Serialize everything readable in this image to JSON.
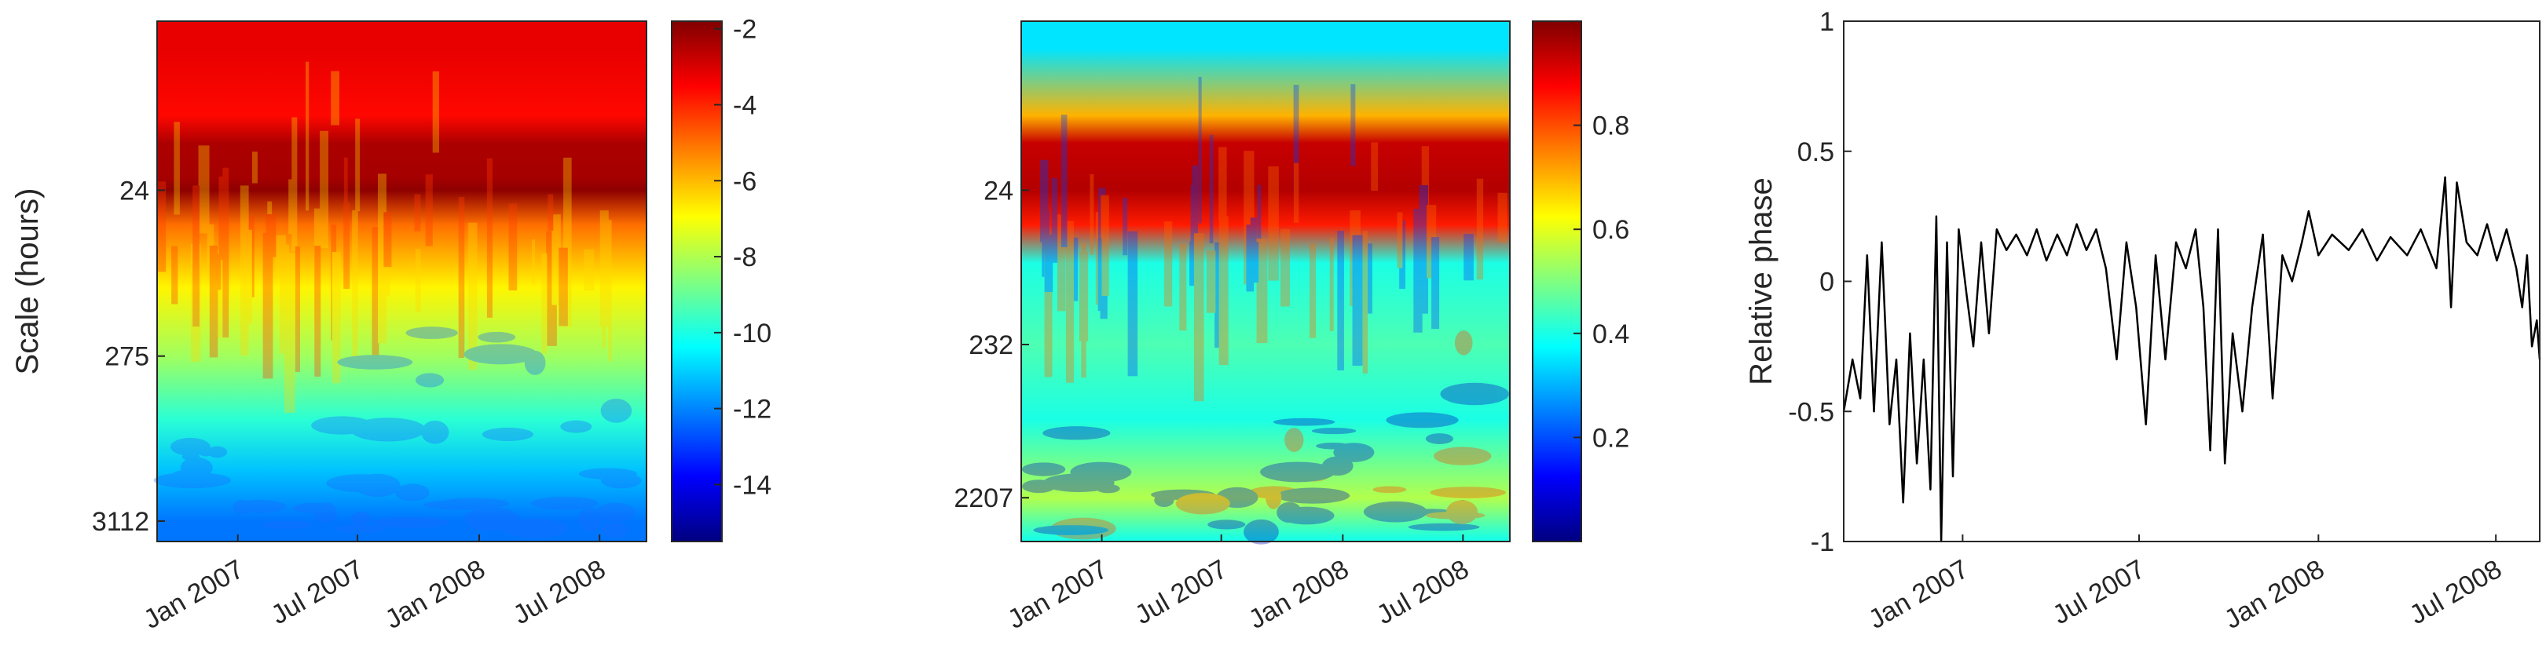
{
  "chart_data": [
    {
      "type": "heatmap",
      "panel": "power",
      "ylabel": "Scale (hours)",
      "y_scale": "log",
      "y_range_hours": [
        2,
        4200
      ],
      "yticks": [
        {
          "label": "24",
          "value": 24
        },
        {
          "label": "275",
          "value": 275
        },
        {
          "label": "3112",
          "value": 3112
        }
      ],
      "x_range": [
        "2006-09-01",
        "2008-09-10"
      ],
      "xticks": [
        {
          "label": "Jan 2007",
          "date": "2007-01-01"
        },
        {
          "label": "Jul 2007",
          "date": "2007-07-01"
        },
        {
          "label": "Jan 2008",
          "date": "2008-01-01"
        },
        {
          "label": "Jul 2008",
          "date": "2008-07-01"
        }
      ],
      "colormap": "jet",
      "colorbar": {
        "min": -15.5,
        "max": -1.8,
        "ticks": [
          -2,
          -4,
          -6,
          -8,
          -10,
          -12,
          -14
        ]
      },
      "profile_by_scale": [
        {
          "scale": 3,
          "value": -3.2
        },
        {
          "scale": 8,
          "value": -3.6
        },
        {
          "scale": 12,
          "value": -2.4
        },
        {
          "scale": 20,
          "value": -2.3
        },
        {
          "scale": 24,
          "value": -2.0
        },
        {
          "scale": 40,
          "value": -5.0
        },
        {
          "scale": 100,
          "value": -6.8
        },
        {
          "scale": 275,
          "value": -8.2
        },
        {
          "scale": 700,
          "value": -9.8
        },
        {
          "scale": 1500,
          "value": -11.2
        },
        {
          "scale": 3112,
          "value": -12.2
        }
      ]
    },
    {
      "type": "heatmap",
      "panel": "coherence",
      "y_scale": "log",
      "y_range_hours": [
        2,
        4200
      ],
      "yticks": [
        {
          "label": "24",
          "value": 24
        },
        {
          "label": "232",
          "value": 232
        },
        {
          "label": "2207",
          "value": 2207
        }
      ],
      "x_range": [
        "2006-09-01",
        "2008-09-10"
      ],
      "xticks": [
        {
          "label": "Jan 2007",
          "date": "2007-01-01"
        },
        {
          "label": "Jul 2007",
          "date": "2007-07-01"
        },
        {
          "label": "Jan 2008",
          "date": "2008-01-01"
        },
        {
          "label": "Jul 2008",
          "date": "2008-07-01"
        }
      ],
      "colormap": "jet",
      "colorbar": {
        "min": 0,
        "max": 1,
        "ticks": [
          0.8,
          0.6,
          0.4,
          0.2
        ]
      },
      "profile_by_scale": [
        {
          "scale": 3,
          "value": 0.35
        },
        {
          "scale": 8,
          "value": 0.7
        },
        {
          "scale": 12,
          "value": 0.93
        },
        {
          "scale": 24,
          "value": 0.95
        },
        {
          "scale": 40,
          "value": 0.85
        },
        {
          "scale": 70,
          "value": 0.4
        },
        {
          "scale": 232,
          "value": 0.45
        },
        {
          "scale": 700,
          "value": 0.4
        },
        {
          "scale": 2207,
          "value": 0.55
        },
        {
          "scale": 4000,
          "value": 0.4
        }
      ]
    },
    {
      "type": "line",
      "ylabel": "Relative phase",
      "ylim": [
        -1,
        1
      ],
      "yticks": [
        1,
        0.5,
        0,
        -0.5,
        -1
      ],
      "x_range": [
        "2006-09-01",
        "2008-08-15"
      ],
      "xticks": [
        {
          "label": "Jan 2007",
          "date": "2007-01-01"
        },
        {
          "label": "Jul 2007",
          "date": "2007-07-01"
        },
        {
          "label": "Jan 2008",
          "date": "2008-01-01"
        },
        {
          "label": "Jul 2008",
          "date": "2008-07-01"
        }
      ],
      "series": [
        {
          "color": "#000000",
          "points": [
            [
              "2006-09-01",
              -0.5
            ],
            [
              "2006-09-10",
              -0.3
            ],
            [
              "2006-09-18",
              -0.45
            ],
            [
              "2006-09-25",
              0.1
            ],
            [
              "2006-10-02",
              -0.5
            ],
            [
              "2006-10-10",
              0.15
            ],
            [
              "2006-10-18",
              -0.55
            ],
            [
              "2006-10-25",
              -0.3
            ],
            [
              "2006-11-01",
              -0.85
            ],
            [
              "2006-11-08",
              -0.2
            ],
            [
              "2006-11-15",
              -0.7
            ],
            [
              "2006-11-22",
              -0.3
            ],
            [
              "2006-11-29",
              -0.8
            ],
            [
              "2006-12-05",
              0.25
            ],
            [
              "2006-12-10",
              -1.0
            ],
            [
              "2006-12-16",
              0.15
            ],
            [
              "2006-12-22",
              -0.75
            ],
            [
              "2006-12-28",
              0.2
            ],
            [
              "2007-01-05",
              -0.05
            ],
            [
              "2007-01-12",
              -0.25
            ],
            [
              "2007-01-20",
              0.15
            ],
            [
              "2007-01-28",
              -0.2
            ],
            [
              "2007-02-05",
              0.2
            ],
            [
              "2007-02-15",
              0.12
            ],
            [
              "2007-02-25",
              0.18
            ],
            [
              "2007-03-08",
              0.1
            ],
            [
              "2007-03-18",
              0.2
            ],
            [
              "2007-03-28",
              0.08
            ],
            [
              "2007-04-08",
              0.18
            ],
            [
              "2007-04-18",
              0.1
            ],
            [
              "2007-04-28",
              0.22
            ],
            [
              "2007-05-08",
              0.12
            ],
            [
              "2007-05-18",
              0.2
            ],
            [
              "2007-05-28",
              0.05
            ],
            [
              "2007-06-08",
              -0.3
            ],
            [
              "2007-06-18",
              0.15
            ],
            [
              "2007-06-28",
              -0.1
            ],
            [
              "2007-07-08",
              -0.55
            ],
            [
              "2007-07-18",
              0.1
            ],
            [
              "2007-07-28",
              -0.3
            ],
            [
              "2007-08-08",
              0.15
            ],
            [
              "2007-08-18",
              0.05
            ],
            [
              "2007-08-28",
              0.2
            ],
            [
              "2007-09-05",
              -0.1
            ],
            [
              "2007-09-12",
              -0.65
            ],
            [
              "2007-09-20",
              0.2
            ],
            [
              "2007-09-27",
              -0.7
            ],
            [
              "2007-10-05",
              -0.2
            ],
            [
              "2007-10-15",
              -0.5
            ],
            [
              "2007-10-25",
              -0.1
            ],
            [
              "2007-11-05",
              0.18
            ],
            [
              "2007-11-15",
              -0.45
            ],
            [
              "2007-11-25",
              0.1
            ],
            [
              "2007-12-05",
              0.0
            ],
            [
              "2007-12-15",
              0.15
            ],
            [
              "2007-12-22",
              0.27
            ],
            [
              "2008-01-01",
              0.1
            ],
            [
              "2008-01-15",
              0.18
            ],
            [
              "2008-02-01",
              0.12
            ],
            [
              "2008-02-15",
              0.2
            ],
            [
              "2008-03-01",
              0.08
            ],
            [
              "2008-03-15",
              0.17
            ],
            [
              "2008-04-01",
              0.1
            ],
            [
              "2008-04-15",
              0.2
            ],
            [
              "2008-05-01",
              0.05
            ],
            [
              "2008-05-10",
              0.4
            ],
            [
              "2008-05-16",
              -0.1
            ],
            [
              "2008-05-22",
              0.38
            ],
            [
              "2008-06-01",
              0.15
            ],
            [
              "2008-06-12",
              0.1
            ],
            [
              "2008-06-22",
              0.22
            ],
            [
              "2008-07-02",
              0.08
            ],
            [
              "2008-07-12",
              0.2
            ],
            [
              "2008-07-22",
              0.05
            ],
            [
              "2008-07-28",
              -0.1
            ],
            [
              "2008-08-02",
              0.1
            ],
            [
              "2008-08-07",
              -0.25
            ],
            [
              "2008-08-12",
              -0.15
            ],
            [
              "2008-08-15",
              -0.3
            ]
          ]
        }
      ]
    }
  ]
}
